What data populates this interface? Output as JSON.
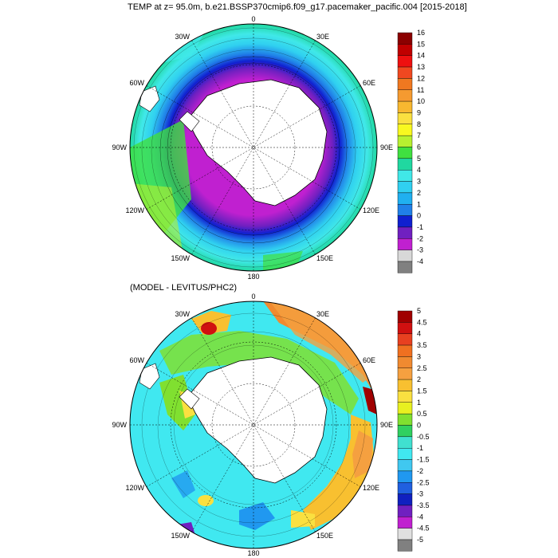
{
  "title": "TEMP at z=  95.0m, b.e21.BSSP370cmip6.f09_g17.pacemaker_pacific.004 [2015-2018]",
  "subtitle": "(MODEL - LEVITUS/PHC2)",
  "top_map": {
    "meridian_labels": [
      "0",
      "30E",
      "60E",
      "90E",
      "120E",
      "150E",
      "180",
      "150W",
      "120W",
      "90W",
      "60W",
      "30W"
    ],
    "colorbar": {
      "labels": [
        "16",
        "15",
        "14",
        "13",
        "12",
        "11",
        "10",
        "9",
        "8",
        "7",
        "6",
        "5",
        "4",
        "3",
        "2",
        "1",
        "0",
        "-1",
        "-2",
        "-3",
        "-4"
      ],
      "colors": [
        "#8b0000",
        "#c00000",
        "#ee1010",
        "#f04820",
        "#f07820",
        "#f59a30",
        "#f8b830",
        "#fae040",
        "#f8f820",
        "#b8f030",
        "#40e040",
        "#20d8a0",
        "#40e8e8",
        "#30d0f0",
        "#20b0f0",
        "#2080e8",
        "#1020d0",
        "#7020c0",
        "#c020d0",
        "#d8d8d8",
        "#808080"
      ]
    }
  },
  "bottom_map": {
    "meridian_labels": [
      "0",
      "30E",
      "60E",
      "90E",
      "120E",
      "150E",
      "180",
      "150W",
      "120W",
      "90W",
      "60W",
      "30W"
    ],
    "colorbar": {
      "labels": [
        "5",
        "4.5",
        "4",
        "3.5",
        "3",
        "2.5",
        "2",
        "1.5",
        "1",
        "0.5",
        "0",
        "-0.5",
        "-1",
        "-1.5",
        "-2",
        "-2.5",
        "-3",
        "-3.5",
        "-4",
        "-4.5",
        "-5"
      ],
      "colors": [
        "#a00000",
        "#d01010",
        "#e84020",
        "#f07020",
        "#f08a30",
        "#f5a040",
        "#f8c030",
        "#fae040",
        "#e8f020",
        "#80e030",
        "#30d060",
        "#40e0d0",
        "#40e8f0",
        "#40c8f0",
        "#2098f0",
        "#2060e0",
        "#1020c0",
        "#7020c0",
        "#c020d0",
        "#e0e0e0",
        "#808080"
      ]
    }
  }
}
